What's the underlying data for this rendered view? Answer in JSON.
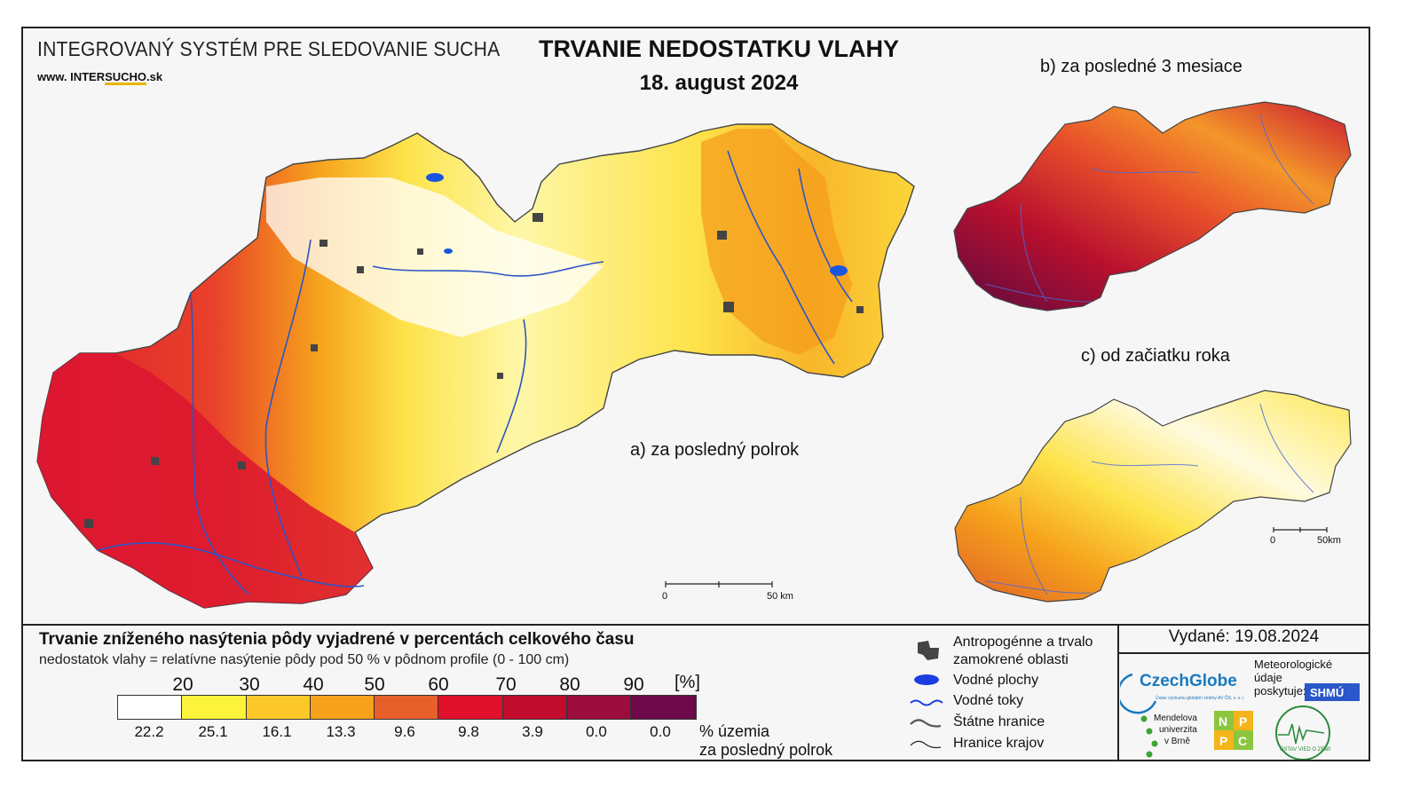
{
  "header": {
    "system_title": "INTEGROVANÝ SYSTÉM PRE SLEDOVANIE SUCHA",
    "website_prefix": "www. INTER",
    "website_emph": "SUCHO",
    "website_suffix": ".sk",
    "main_title": "TRVANIE NEDOSTATKU VLAHY",
    "date": "18. august 2024"
  },
  "panels": {
    "a_label": "a) za posledný polrok",
    "b_label": "b) za posledné 3 mesiace",
    "c_label": "c) od začiatku roka"
  },
  "scale_bars": {
    "main_start": "0",
    "main_end": "50 km",
    "small_start": "0",
    "small_end": "50km"
  },
  "legend": {
    "title": "Trvanie zníženého nasýtenia pôdy vyjadrené v percentách celkového času",
    "subtitle": "nedostatok vlahy = relatívne nasýtenie pôdy pod 50 % v pôdnom profile (0 - 100 cm)",
    "ticks": [
      "20",
      "30",
      "40",
      "50",
      "60",
      "70",
      "80",
      "90"
    ],
    "unit": "[%]",
    "colors": [
      "#ffffff",
      "#fcf33c",
      "#fdc92a",
      "#f6a21c",
      "#e7602a",
      "#e0102a",
      "#c10c2e",
      "#9c0c3c",
      "#6e0a4c"
    ],
    "values": [
      "22.2",
      "25.1",
      "16.1",
      "13.3",
      "9.6",
      "9.8",
      "3.9",
      "0.0",
      "0.0"
    ],
    "values_note_line1": "% územia",
    "values_note_line2": "za posledný polrok"
  },
  "symbols": {
    "anthropogenic_line1": "Antropogénne a trvalo",
    "anthropogenic_line2": "zamokrené oblasti",
    "water_bodies": "Vodné plochy",
    "water_streams": "Vodné toky",
    "state_borders": "Štátne hranice",
    "region_borders": "Hranice krajov",
    "anthropogenic_icon": "built-up-area-icon",
    "water_body_icon": "water-body-icon",
    "stream_icon": "stream-line-icon",
    "state_border_icon": "state-border-line-icon",
    "region_border_icon": "region-border-line-icon"
  },
  "issued": {
    "text": "Vydané: 19.08.2024"
  },
  "logos": {
    "czechglobe": "CzechGlobe",
    "czechglobe_sub": "Ústav výzkumu globální změny AV ČR, v. v. i.",
    "meteo_line1": "Meteorologické",
    "meteo_line2": "údaje",
    "meteo_line3": "poskytuje:",
    "shmu": "SHMÚ",
    "mendel_line1": "Mendelova",
    "mendel_line2": "univerzita",
    "mendel_line3": "v Brně",
    "nppc": [
      "N",
      "P",
      "P",
      "C"
    ],
    "usvz": "ÚSTAV VIED O ZEMI"
  }
}
